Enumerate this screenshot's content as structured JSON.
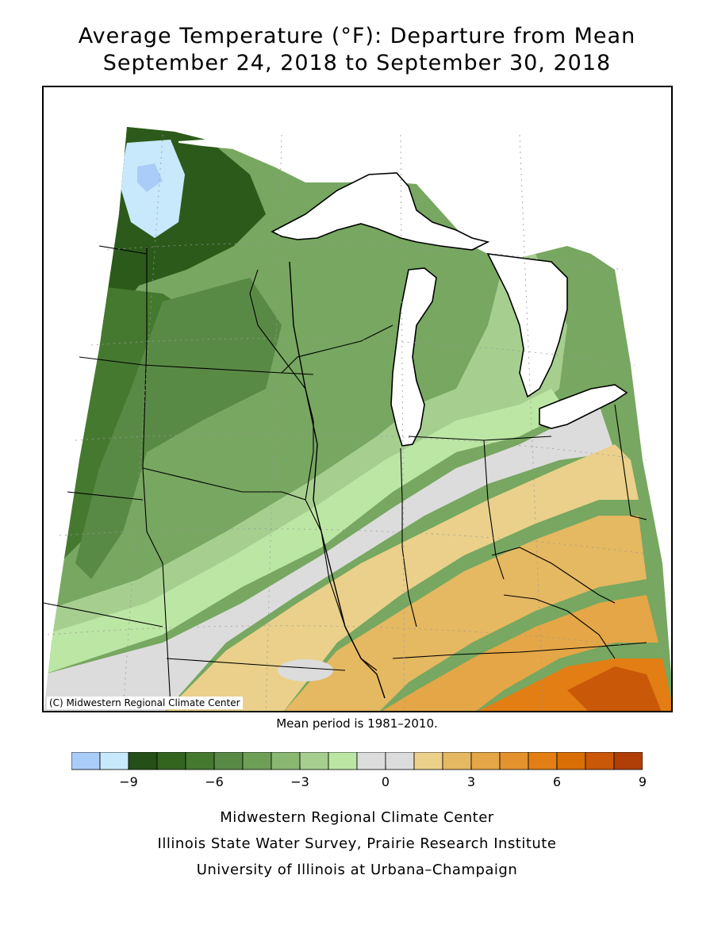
{
  "title_line1": "Average Temperature (°F): Departure from Mean",
  "title_line2": "September 24, 2018 to September 30, 2018",
  "copyright": "(C) Midwestern Regional Climate Center",
  "mean_note": "Mean period is 1981–2010.",
  "legend": {
    "colors": [
      "#aaccf8",
      "#c7e9fb",
      "#244f17",
      "#33651f",
      "#45792f",
      "#598a45",
      "#6f9f57",
      "#8ab872",
      "#a6cf8f",
      "#bce6a4",
      "#dcdcdc",
      "#dcdcdc",
      "#ead08b",
      "#e5b862",
      "#e4a646",
      "#e4922e",
      "#e27e14",
      "#d96e05",
      "#c95808",
      "#b03e07"
    ],
    "ticks": [
      {
        "value": -9,
        "label": "−9"
      },
      {
        "value": -6,
        "label": "−6"
      },
      {
        "value": -3,
        "label": "−3"
      },
      {
        "value": 0,
        "label": "0"
      },
      {
        "value": 3,
        "label": "3"
      },
      {
        "value": 6,
        "label": "6"
      },
      {
        "value": 9,
        "label": "9"
      }
    ],
    "min": -11,
    "max": 9
  },
  "credits": [
    "Midwestern Regional Climate Center",
    "Illinois State Water Survey, Prairie Research Institute",
    "University of Illinois at Urbana–Champaign"
  ],
  "map": {
    "region": "Midwest US",
    "palette": {
      "water": "#ffffff",
      "cold_lightblue": "#c7e9fb",
      "cold_blue": "#aaccf8",
      "dark_green": "#2c5a1b",
      "green_mid": "#5b8d47",
      "green": "#77a760",
      "light_green": "#a6cf8f",
      "pale_green": "#bce6a4",
      "gray": "#dcdcdc",
      "tan": "#ead08b",
      "light_orange": "#e5b862",
      "orange": "#e4a646",
      "deep_orange": "#e27e14",
      "brown_orange": "#c95808"
    }
  }
}
